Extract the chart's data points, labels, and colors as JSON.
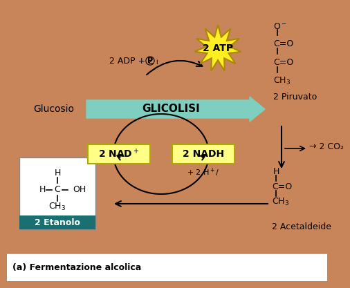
{
  "bg_color": "#C8855A",
  "bottom_bar_color": "#FFFFFF",
  "bottom_text": "(a) Fermentazione alcolica",
  "glucosio_label": "Glucosio",
  "glycolysis_label": "GLICOLISI",
  "glycolysis_arrow_color": "#7ECFBF",
  "adp_label": "2 ADP + 2 ",
  "adp_pi": "P",
  "adp_i": "i",
  "atp_label": "2 ATP",
  "atp_star_color": "#FFEE22",
  "atp_star_border": "#AA8800",
  "nad_box_color": "#FFFF88",
  "nad_box_border": "#AAAA00",
  "nad_label": "2 NAD",
  "nad_sup": "+",
  "nadh_label": "2 NADH",
  "nadh_sub": "+ 2 H",
  "nadh_sub2": "+/",
  "piruvato_label": "2 Piruvato",
  "co2_label": "→ 2 CO₂",
  "acetaldeide_label": "2 Acetaldeide",
  "etanolo_label": "2 Etanolo",
  "etanolo_box_color": "#1A7070",
  "etanolo_text_color": "#FFFFFF",
  "white_box_color": "#FFFFFF",
  "molecule_color": "#000000"
}
